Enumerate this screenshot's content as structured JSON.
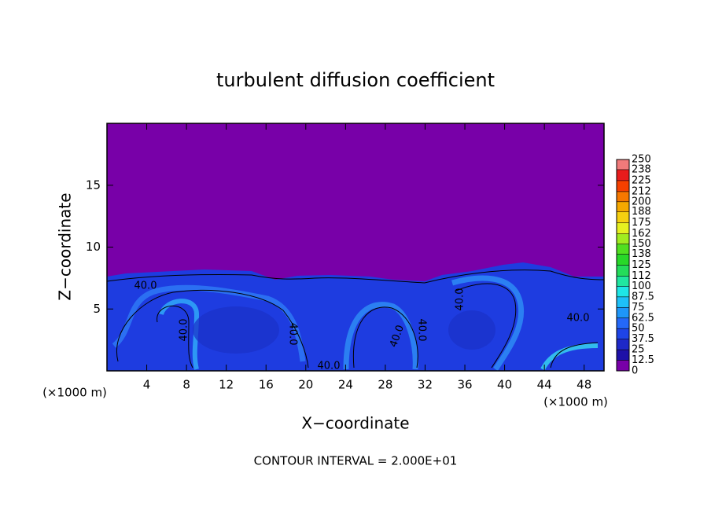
{
  "chart_data": {
    "type": "contour",
    "title": "turbulent diffusion coefficient",
    "x_label": "X−coordinate",
    "y_label": "Z−coordinate",
    "x_unit": "(×1000 m)",
    "xlim": [
      0,
      50
    ],
    "xticks": [
      4,
      8,
      12,
      16,
      20,
      24,
      28,
      32,
      36,
      40,
      44,
      48
    ],
    "ylim": [
      0,
      20
    ],
    "yticks": [
      5,
      10,
      15
    ],
    "background_color": "#7800a8",
    "colorbar": {
      "levels": [
        0,
        12.5,
        25,
        37.5,
        50,
        62.5,
        75,
        87.5,
        100,
        112,
        125,
        138,
        150,
        162,
        175,
        188,
        200,
        212,
        225,
        238,
        250
      ],
      "colors": [
        "#7800a8",
        "#1e10a8",
        "#1e28c8",
        "#1e44e6",
        "#2468f8",
        "#1e96fa",
        "#1ec0f8",
        "#1ee6e6",
        "#20e6a0",
        "#24dc5a",
        "#28d828",
        "#50e020",
        "#a0ec20",
        "#e6f020",
        "#f6d010",
        "#f6a800",
        "#f67800",
        "#f64000",
        "#e81c1c",
        "#f07a7a"
      ]
    },
    "contour_labels": [
      "40.0",
      "40.0",
      "40.0",
      "40.0",
      "40.0",
      "40.0",
      "40.0",
      "40.0"
    ],
    "footer": "CONTOUR INTERVAL = 2.000E+01"
  }
}
